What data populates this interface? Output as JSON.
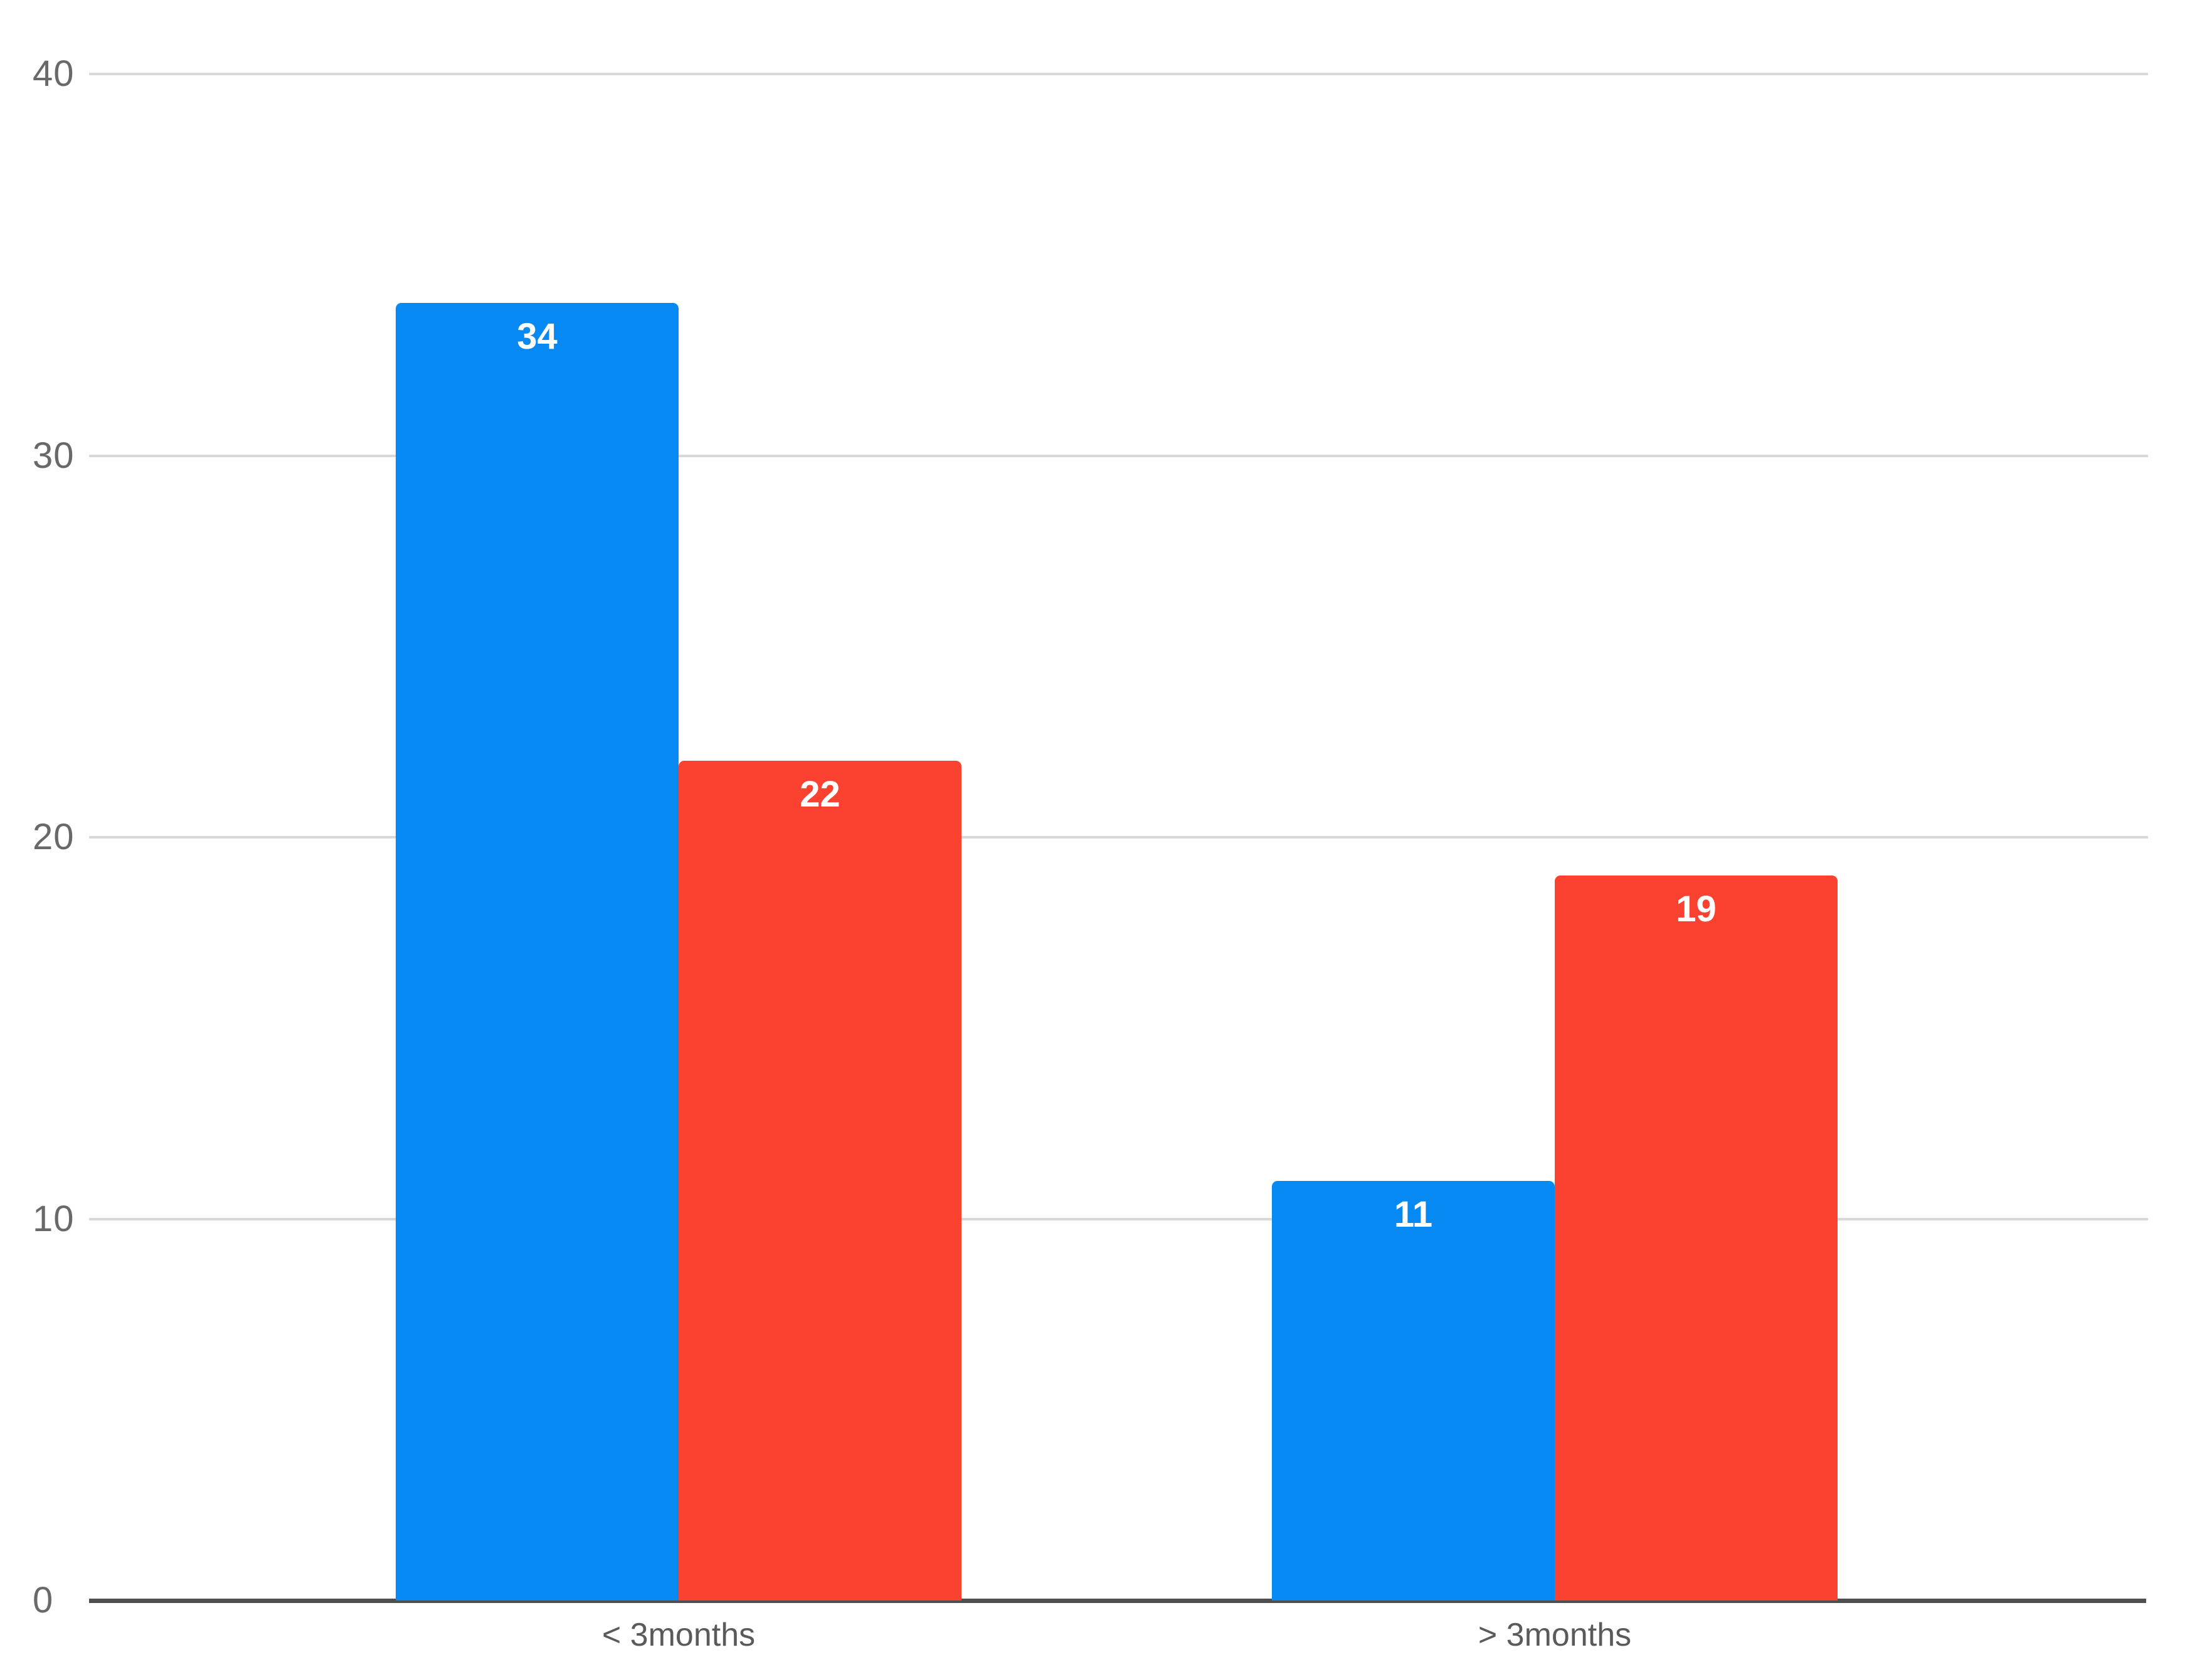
{
  "chart_data": {
    "type": "bar",
    "title": "",
    "xlabel": "",
    "ylabel": "",
    "categories": [
      "< 3months",
      "> 3months"
    ],
    "series": [
      {
        "name": "blue-series",
        "color": "#0789f4",
        "values": [
          34,
          11
        ]
      },
      {
        "name": "red-series",
        "color": "#fb4231",
        "values": [
          22,
          19
        ]
      }
    ],
    "value_labels": [
      [
        "34",
        "11"
      ],
      [
        "22",
        "19"
      ]
    ],
    "ylim": [
      0,
      40
    ],
    "yticks": [
      "0",
      "10",
      "20",
      "30",
      "40"
    ],
    "grid": true,
    "legend_position": "none",
    "colors": {
      "background": "#ffffff",
      "grid_line": "#d8d8d8",
      "axis_line": "#4f4f4f",
      "y_tick_text": "#696969",
      "x_tick_text": "#5a5a5a",
      "value_label_text": "#ffffff"
    }
  }
}
